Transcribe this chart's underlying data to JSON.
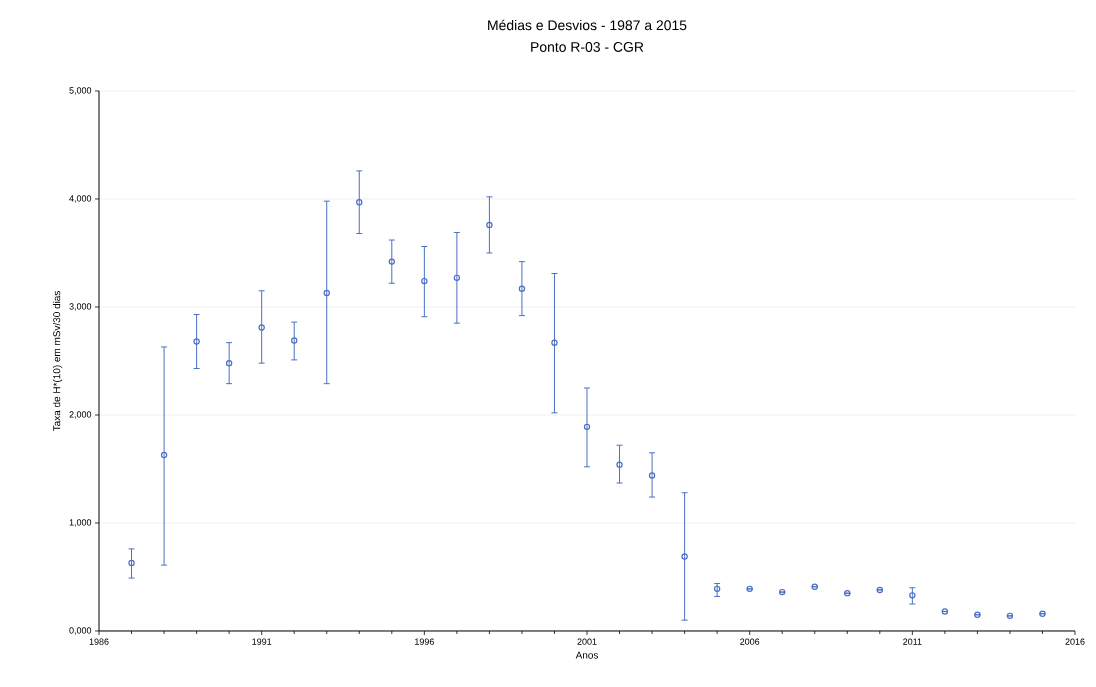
{
  "chart_data": {
    "type": "scatter",
    "title": "Médias e Desvios - 1987 a 2015",
    "subtitle": "Ponto R-03 - CGR",
    "xlabel": "Anos",
    "ylabel": "Taxa de H*(10) em mSv/30 dias",
    "xlim": [
      1986,
      2016
    ],
    "xticks": [
      1986,
      1991,
      1996,
      2001,
      2006,
      2011,
      2016
    ],
    "ylim": [
      0,
      5000
    ],
    "yticks": [
      {
        "value": 0,
        "label": "0,000"
      },
      {
        "value": 1000,
        "label": "1,000"
      },
      {
        "value": 2000,
        "label": "2,000"
      },
      {
        "value": 3000,
        "label": "3,000"
      },
      {
        "value": 4000,
        "label": "4,000"
      },
      {
        "value": 5000,
        "label": "5,000"
      }
    ],
    "grid": "y",
    "marker": "circle",
    "series": [
      {
        "color": "#4a6fc4",
        "x": [
          1987,
          1988,
          1989,
          1990,
          1991,
          1992,
          1993,
          1994,
          1995,
          1996,
          1997,
          1998,
          1999,
          2000,
          2001,
          2002,
          2003,
          2004,
          2005,
          2006,
          2007,
          2008,
          2009,
          2010,
          2011,
          2012,
          2013,
          2014,
          2015
        ],
        "values": [
          630,
          1630,
          2680,
          2480,
          2810,
          2690,
          3130,
          3970,
          3420,
          3240,
          3270,
          3760,
          3170,
          2670,
          1890,
          1540,
          1440,
          690,
          390,
          390,
          360,
          410,
          350,
          380,
          330,
          180,
          150,
          140,
          160
        ],
        "errors": [
          [
            490,
            760
          ],
          [
            610,
            2630
          ],
          [
            2430,
            2930
          ],
          [
            2290,
            2670
          ],
          [
            2480,
            3150
          ],
          [
            2510,
            2860
          ],
          [
            2290,
            3980
          ],
          [
            3680,
            4260
          ],
          [
            3220,
            3620
          ],
          [
            2910,
            3560
          ],
          [
            2850,
            3690
          ],
          [
            3500,
            4020
          ],
          [
            2920,
            3420
          ],
          [
            2020,
            3310
          ],
          [
            1520,
            2250
          ],
          [
            1370,
            1720
          ],
          [
            1240,
            1650
          ],
          [
            100,
            1280
          ],
          [
            320,
            440
          ],
          null,
          null,
          null,
          null,
          null,
          [
            250,
            400
          ],
          null,
          null,
          null,
          null
        ]
      }
    ]
  }
}
